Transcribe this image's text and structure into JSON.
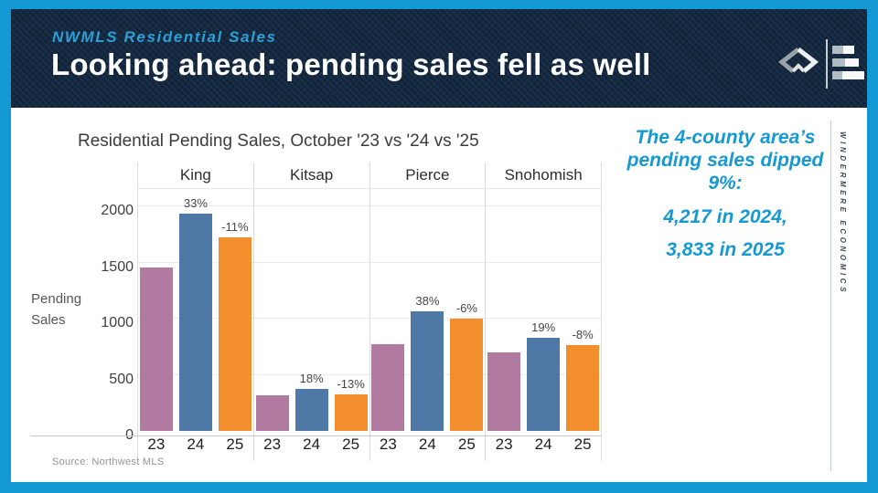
{
  "colors": {
    "frame_accent": "#1599d5",
    "header_bg": "#14273c",
    "eyebrow_blue": "#2d9fd6",
    "callout_blue": "#1699d2",
    "bar_2023": "#b07aa1",
    "bar_2024": "#4e79a7",
    "bar_2025": "#f28e2b"
  },
  "header": {
    "eyebrow": "NWMLS Residential Sales",
    "title": "Looking ahead: pending sales fell as well"
  },
  "chart_data": {
    "type": "bar",
    "title": "Residential Pending Sales, October '23 vs '24 vs '25",
    "ylabel": "Pending Sales",
    "categories": [
      "King",
      "Kitsap",
      "Pierce",
      "Snohomish"
    ],
    "series": [
      {
        "year": "23",
        "color": "#b07aa1",
        "values": [
          1460,
          320,
          775,
          700
        ],
        "pct_labels": [
          "",
          "",
          "",
          ""
        ]
      },
      {
        "year": "24",
        "color": "#4e79a7",
        "values": [
          1940,
          380,
          1070,
          835
        ],
        "pct_labels": [
          "33%",
          "18%",
          "38%",
          "19%"
        ]
      },
      {
        "year": "25",
        "color": "#f28e2b",
        "values": [
          1730,
          330,
          1005,
          765
        ],
        "pct_labels": [
          "-11%",
          "-13%",
          "-6%",
          "-8%"
        ]
      }
    ],
    "y_ticks": [
      0,
      500,
      1000,
      1500,
      2000
    ],
    "ylim": [
      0,
      2195
    ],
    "grid": true,
    "legend": "none",
    "source": "Source: Northwest MLS"
  },
  "callout": {
    "intro": "The 4-county area’s pending sales dipped 9%:",
    "stat_2024": "4,217 in 2024,",
    "stat_2025": "3,833 in 2025"
  },
  "sidebar": {
    "vertical_text": "WINDERMERE ECONOMICS"
  }
}
